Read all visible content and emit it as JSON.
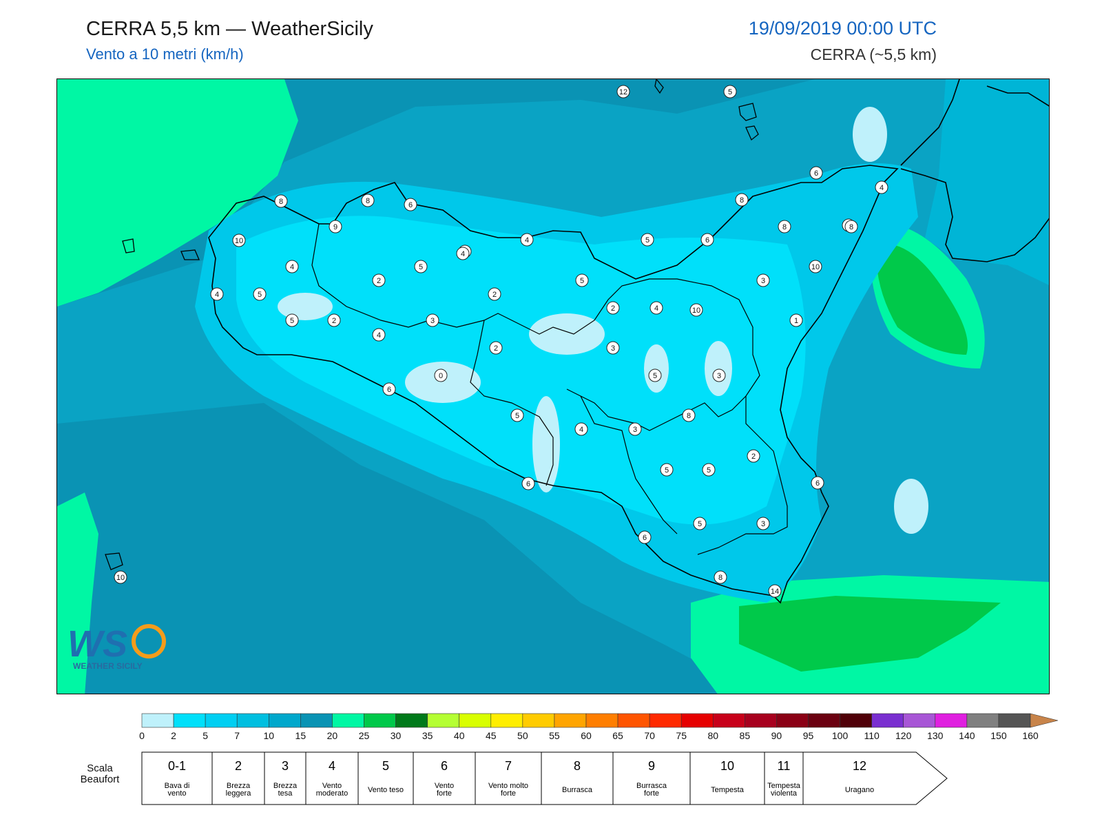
{
  "header": {
    "title": "CERRA 5,5 km — WeatherSicily",
    "subtitle": "Vento a 10 metri (km/h)",
    "datetime": "19/09/2019 00:00 UTC",
    "model": "CERRA (~5,5 km)"
  },
  "logo": {
    "text": "WEATHER SICILY",
    "mark": "WS"
  },
  "colors": {
    "sea_dark": "#0a93b4",
    "sea_mid": "#0aa3c4",
    "cyan": "#00c8ea",
    "cyan_light": "#00e0fa",
    "pale": "#bff1fb",
    "green_light": "#00f7a4",
    "green": "#00c94a",
    "green_dark": "#007a1a"
  },
  "map_labels": {
    "wind_values": [
      "12",
      "5",
      "6",
      "8",
      "8",
      "6",
      "4",
      "8",
      "8",
      "10",
      "9",
      "8",
      "8",
      "4",
      "4",
      "5",
      "6",
      "10",
      "4",
      "5",
      "2",
      "4",
      "5",
      "2",
      "3",
      "4",
      "5",
      "10",
      "2",
      "4",
      "1",
      "5",
      "2",
      "3",
      "4",
      "2",
      "3",
      "0",
      "6",
      "5",
      "3",
      "8",
      "4",
      "3",
      "5",
      "2",
      "5",
      "5",
      "6",
      "6",
      "5",
      "3",
      "6",
      "8",
      "14",
      "10"
    ]
  },
  "legend": {
    "ticks": [
      "0",
      "2",
      "5",
      "7",
      "10",
      "15",
      "20",
      "25",
      "30",
      "35",
      "40",
      "45",
      "50",
      "55",
      "60",
      "65",
      "70",
      "75",
      "80",
      "85",
      "90",
      "95",
      "100",
      "110",
      "120",
      "130",
      "140",
      "150",
      "160"
    ],
    "colors": [
      "#bff1fb",
      "#00e0fa",
      "#00cff2",
      "#00bfe0",
      "#00a8cc",
      "#0993b4",
      "#00f7a4",
      "#00c94a",
      "#007a1a",
      "#b5ff33",
      "#d9ff00",
      "#ffee00",
      "#ffcc00",
      "#ffa500",
      "#ff7f00",
      "#ff5500",
      "#ff2a00",
      "#e60000",
      "#c8001a",
      "#a8001e",
      "#8b0015",
      "#6b0010",
      "#500008",
      "#7a2fd0",
      "#a856d6",
      "#e020e0",
      "#808080",
      "#555555",
      "#000000",
      "#8a4a24",
      "#c8844a"
    ],
    "beaufort_title": "Scala\nBeaufort",
    "beaufort": [
      {
        "num": "0-1",
        "desc": "Bava di vento"
      },
      {
        "num": "2",
        "desc": "Brezza leggera"
      },
      {
        "num": "3",
        "desc": "Brezza tesa"
      },
      {
        "num": "4",
        "desc": "Vento moderato"
      },
      {
        "num": "5",
        "desc": "Vento teso"
      },
      {
        "num": "6",
        "desc": "Vento forte"
      },
      {
        "num": "7",
        "desc": "Vento molto forte"
      },
      {
        "num": "8",
        "desc": "Burrasca"
      },
      {
        "num": "9",
        "desc": "Burrasca forte"
      },
      {
        "num": "10",
        "desc": "Tempesta"
      },
      {
        "num": "11",
        "desc": "Tempesta violenta"
      },
      {
        "num": "12",
        "desc": "Uragano"
      }
    ]
  }
}
